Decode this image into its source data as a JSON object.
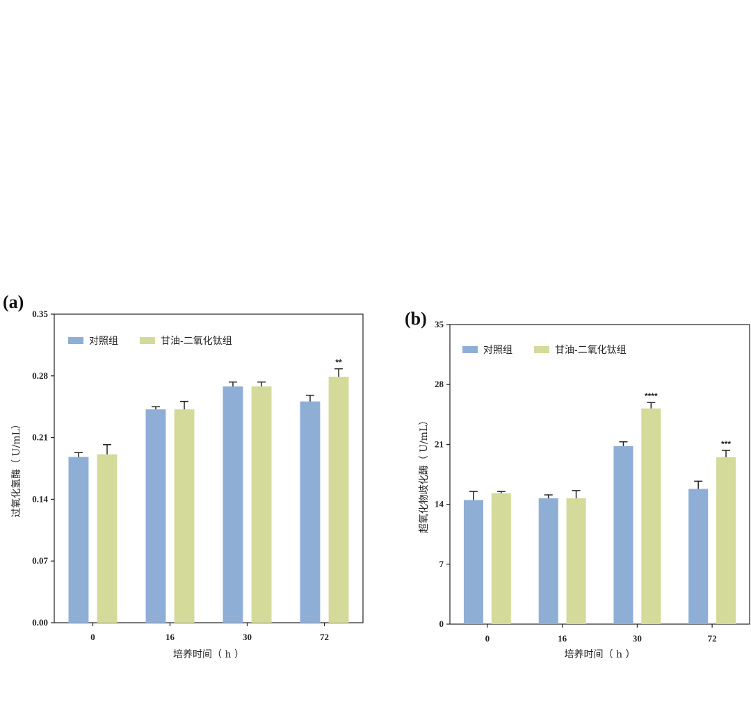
{
  "chart_data": [
    {
      "panel_label": "(a)",
      "type": "bar",
      "categories": [
        "0",
        "16",
        "30",
        "72"
      ],
      "xlabel": "培养时间（ h ）",
      "ylabel": "过氧化氢酶（ U/mL）",
      "ylim": [
        0,
        0.35
      ],
      "yticks": [
        "0.00",
        "0.07",
        "0.14",
        "0.21",
        "0.28",
        "0.35"
      ],
      "legend_position": "top-left",
      "grid": false,
      "series": [
        {
          "name": "对照组",
          "color": "#8eaed6",
          "values": [
            0.188,
            0.242,
            0.268,
            0.251
          ],
          "errors": [
            0.005,
            0.003,
            0.005,
            0.007
          ]
        },
        {
          "name": "甘油-二氧化钛组",
          "color": "#d4da99",
          "values": [
            0.191,
            0.242,
            0.268,
            0.279
          ],
          "errors": [
            0.011,
            0.009,
            0.005,
            0.009
          ]
        }
      ],
      "annotations": [
        {
          "category": "72",
          "series": 1,
          "text": "**"
        }
      ]
    },
    {
      "panel_label": "(b)",
      "type": "bar",
      "categories": [
        "0",
        "16",
        "30",
        "72"
      ],
      "xlabel": "培养时间（ h ）",
      "ylabel": "超氧化物歧化酶（ U/mL）",
      "ylim": [
        0,
        35
      ],
      "yticks": [
        "0",
        "7",
        "14",
        "21",
        "28",
        "35"
      ],
      "legend_position": "top-left",
      "grid": false,
      "series": [
        {
          "name": "对照组",
          "color": "#8eaed6",
          "values": [
            14.5,
            14.7,
            20.8,
            15.8
          ],
          "errors": [
            1.0,
            0.4,
            0.5,
            0.9
          ]
        },
        {
          "name": "甘油-二氧化钛组",
          "color": "#d4da99",
          "values": [
            15.3,
            14.7,
            25.2,
            19.5
          ],
          "errors": [
            0.2,
            0.9,
            0.7,
            0.8
          ]
        }
      ],
      "annotations": [
        {
          "category": "30",
          "series": 1,
          "text": "****"
        },
        {
          "category": "72",
          "series": 1,
          "text": "***"
        }
      ]
    }
  ]
}
